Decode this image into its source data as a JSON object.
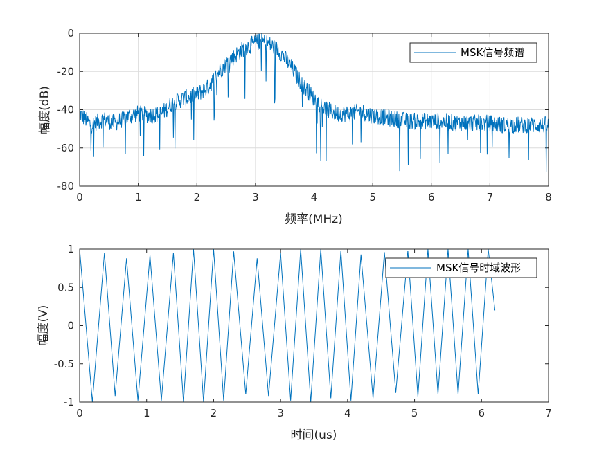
{
  "chart_data": [
    {
      "type": "line",
      "xlabel": "频率(MHz)",
      "ylabel": "幅度(dB)",
      "xlim": [
        0,
        8
      ],
      "ylim": [
        -80,
        0
      ],
      "xticks": [
        "0",
        "1",
        "2",
        "3",
        "4",
        "5",
        "6",
        "7",
        "8"
      ],
      "yticks": [
        "0",
        "-20",
        "-40",
        "-60",
        "-80"
      ],
      "grid": true,
      "legend": "top-right",
      "series": [
        {
          "name": "MSK信号频谱",
          "color": "#0072bd",
          "x": [
            0.0,
            0.2,
            0.4,
            0.6,
            0.8,
            1.0,
            1.2,
            1.4,
            1.6,
            1.8,
            2.0,
            2.2,
            2.4,
            2.6,
            2.8,
            3.0,
            3.1,
            3.2,
            3.4,
            3.6,
            3.8,
            4.0,
            4.2,
            4.4,
            4.6,
            4.8,
            5.0,
            5.2,
            5.4,
            5.6,
            5.8,
            6.0,
            6.2,
            6.4,
            6.6,
            6.8,
            7.0,
            7.2,
            7.4,
            7.6,
            7.8,
            8.0
          ],
          "y": [
            -42,
            -48,
            -45,
            -47,
            -44,
            -42,
            -43,
            -42,
            -36,
            -34,
            -32,
            -28,
            -19,
            -13,
            -8,
            -5,
            -4,
            -5,
            -9,
            -17,
            -27,
            -34,
            -40,
            -42,
            -42,
            -41,
            -43,
            -44,
            -45,
            -46,
            -46,
            -46,
            -46,
            -47,
            -47,
            -47,
            -47,
            -48,
            -48,
            -48,
            -48,
            -48
          ]
        }
      ]
    },
    {
      "type": "line",
      "xlabel": "时间(us)",
      "ylabel": "幅度(V)",
      "xlim": [
        0,
        7
      ],
      "ylim": [
        -1,
        1
      ],
      "xticks": [
        "0",
        "1",
        "2",
        "3",
        "4",
        "5",
        "6",
        "7"
      ],
      "yticks": [
        "1",
        "0.5",
        "0",
        "-0.5",
        "-1"
      ],
      "grid": false,
      "legend": "top-right",
      "series": [
        {
          "name": "MSK信号时域波形",
          "color": "#0072bd",
          "x": [
            0.0,
            0.19,
            0.37,
            0.53,
            0.7,
            0.87,
            1.05,
            1.22,
            1.4,
            1.55,
            1.7,
            1.85,
            2.0,
            2.15,
            2.3,
            2.48,
            2.65,
            2.82,
            3.0,
            3.15,
            3.3,
            3.45,
            3.6,
            3.75,
            3.9,
            4.05,
            4.2,
            4.38,
            4.55,
            4.72,
            4.9,
            5.05,
            5.2,
            5.35,
            5.5,
            5.65,
            5.8,
            5.95,
            6.1,
            6.2
          ],
          "y": [
            1.0,
            -1.0,
            0.95,
            -0.92,
            0.88,
            -0.98,
            0.92,
            -0.98,
            0.95,
            -1.0,
            1.0,
            -1.0,
            1.0,
            -0.98,
            0.97,
            -0.9,
            0.88,
            -0.92,
            0.95,
            -0.98,
            1.0,
            -1.0,
            1.0,
            -0.95,
            0.98,
            -0.98,
            0.93,
            -0.95,
            0.96,
            -0.88,
            0.98,
            -0.93,
            1.0,
            -0.9,
            1.0,
            -0.9,
            1.0,
            -0.9,
            1.0,
            0.2
          ]
        }
      ]
    }
  ]
}
